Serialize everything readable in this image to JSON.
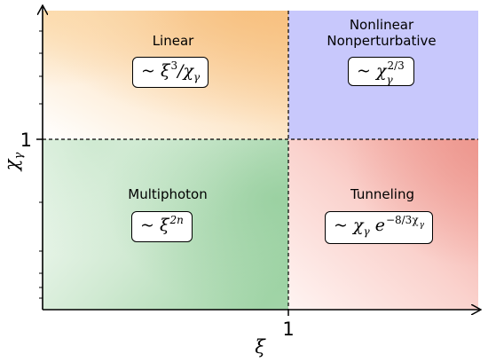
{
  "axes": {
    "x_label": "ξ",
    "y_label": "χ",
    "y_label_sub": "γ",
    "x_tick": "1",
    "y_tick": "1"
  },
  "regions": [
    {
      "id": "linear",
      "title_lines": [
        "Linear"
      ],
      "formula": {
        "lead": "~ ",
        "base": "ξ",
        "sup": "3",
        "tail": "/χ",
        "tail_sub": "γ"
      },
      "color": "#f7c98a"
    },
    {
      "id": "nonlinear",
      "title_lines": [
        "Nonlinear",
        "Nonperturbative"
      ],
      "formula": {
        "lead": "~ ",
        "base": "χ",
        "sub": "γ",
        "sup": "2/3"
      },
      "color": "#c7c7fb"
    },
    {
      "id": "multiphoton",
      "title_lines": [
        "Multiphoton"
      ],
      "formula": {
        "lead": "~ ",
        "base": "ξ",
        "sup": "2n"
      },
      "color": "#9fd4a5"
    },
    {
      "id": "tunneling",
      "title_lines": [
        "Tunneling"
      ],
      "formula": {
        "lead": "~ ",
        "base": "χ",
        "sub": "γ",
        "mid": " e",
        "sup": "−8/3χ",
        "sup_sub": "γ"
      },
      "color": "#f4a7a0"
    }
  ]
}
